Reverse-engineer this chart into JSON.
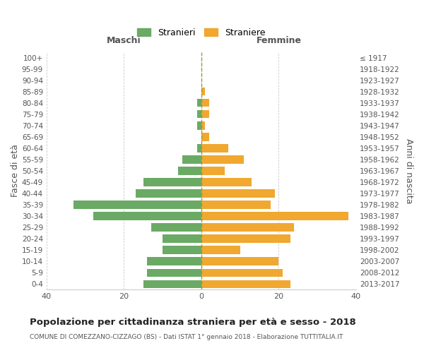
{
  "age_groups": [
    "0-4",
    "5-9",
    "10-14",
    "15-19",
    "20-24",
    "25-29",
    "30-34",
    "35-39",
    "40-44",
    "45-49",
    "50-54",
    "55-59",
    "60-64",
    "65-69",
    "70-74",
    "75-79",
    "80-84",
    "85-89",
    "90-94",
    "95-99",
    "100+"
  ],
  "birth_years": [
    "2013-2017",
    "2008-2012",
    "2003-2007",
    "1998-2002",
    "1993-1997",
    "1988-1992",
    "1983-1987",
    "1978-1982",
    "1973-1977",
    "1968-1972",
    "1963-1967",
    "1958-1962",
    "1953-1957",
    "1948-1952",
    "1943-1947",
    "1938-1942",
    "1933-1937",
    "1928-1932",
    "1923-1927",
    "1918-1922",
    "≤ 1917"
  ],
  "males": [
    15,
    14,
    14,
    10,
    10,
    13,
    28,
    33,
    17,
    15,
    6,
    5,
    1,
    0,
    1,
    1,
    1,
    0,
    0,
    0,
    0
  ],
  "females": [
    23,
    21,
    20,
    10,
    23,
    24,
    38,
    18,
    19,
    13,
    6,
    11,
    7,
    2,
    1,
    2,
    2,
    1,
    0,
    0,
    0
  ],
  "male_color": "#6aaa64",
  "female_color": "#f0a830",
  "title": "Popolazione per cittadinanza straniera per età e sesso - 2018",
  "subtitle": "COMUNE DI COMEZZANO-CIZZAGO (BS) - Dati ISTAT 1° gennaio 2018 - Elaborazione TUTTITALIA.IT",
  "ylabel_left": "Fasce di età",
  "ylabel_right": "Anni di nascita",
  "xlim": 40,
  "legend_stranieri": "Stranieri",
  "legend_straniere": "Straniere",
  "header_maschi": "Maschi",
  "header_femmine": "Femmine",
  "background_color": "#ffffff",
  "grid_color": "#cccccc",
  "bar_height": 0.7
}
